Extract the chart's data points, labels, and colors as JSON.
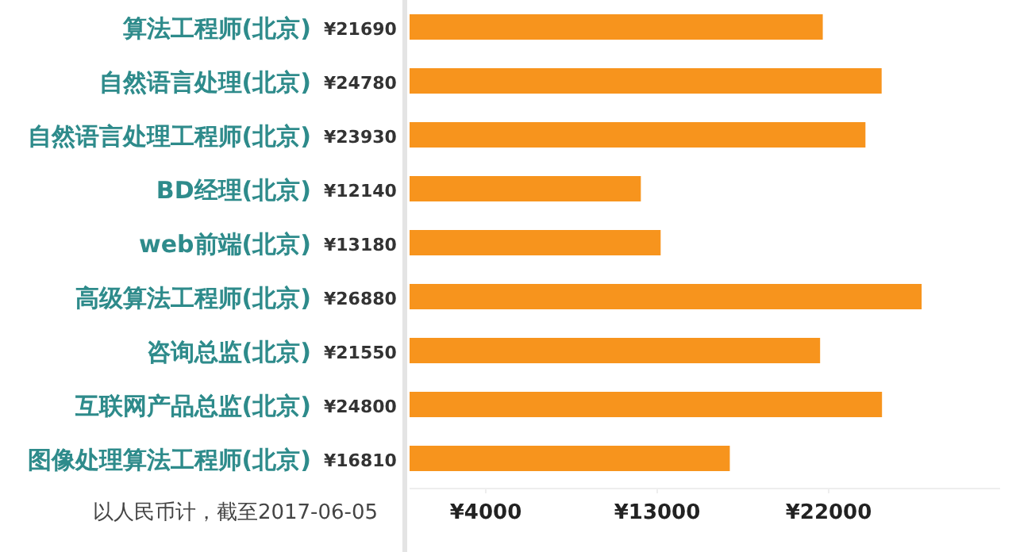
{
  "chart_data": {
    "type": "bar",
    "orientation": "horizontal",
    "categories": [
      "算法工程师(北京)",
      "自然语言处理(北京)",
      "自然语言处理工程师(北京)",
      "BD经理(北京)",
      "web前端(北京)",
      "高级算法工程师(北京)",
      "咨询总监(北京)",
      "互联网产品总监(北京)",
      "图像处理算法工程师(北京)"
    ],
    "values": [
      21690,
      24780,
      23930,
      12140,
      13180,
      26880,
      21550,
      24800,
      16810
    ],
    "value_labels": [
      "¥21690",
      "¥24780",
      "¥23930",
      "¥12140",
      "¥13180",
      "¥26880",
      "¥21550",
      "¥24800",
      "¥16810"
    ],
    "color": "#f7941d",
    "xlim": [
      0,
      31000
    ],
    "xticks": [
      {
        "value": 4000,
        "label": "¥4000"
      },
      {
        "value": 13000,
        "label": "¥13000"
      },
      {
        "value": 22000,
        "label": "¥22000"
      }
    ],
    "grid": false,
    "annotations": [
      "以人民币计，截至2017-06-05"
    ]
  }
}
